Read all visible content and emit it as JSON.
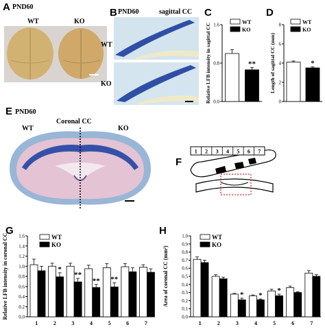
{
  "panels": {
    "A": {
      "label": "A",
      "tag": "PND60",
      "wt": "WT",
      "ko": "KO"
    },
    "B": {
      "label": "B",
      "tag": "PND60",
      "title": "sagittal CC",
      "wt": "WT",
      "ko": "KO"
    },
    "C": {
      "label": "C"
    },
    "D": {
      "label": "D"
    },
    "E": {
      "label": "E",
      "tag": "PND60",
      "wt": "WT",
      "ko": "KO",
      "title": "Coronal CC"
    },
    "F": {
      "label": "F",
      "segments": [
        "1",
        "2",
        "3",
        "4",
        "5",
        "6",
        "7"
      ]
    },
    "G": {
      "label": "G"
    },
    "H": {
      "label": "H"
    }
  },
  "colors": {
    "wt": "#ffffff",
    "ko": "#000000",
    "stain_blue": "#3a55a8",
    "tissue_pink": "#e8c7d6",
    "brain": "#d8b77a"
  },
  "chart_data": [
    {
      "id": "C",
      "type": "bar",
      "categories": [
        "WT",
        "KO"
      ],
      "values": [
        1.0,
        0.66
      ],
      "errors": [
        0.08,
        0.05
      ],
      "ylabel": "Relative LFB intensity in sagittal CC",
      "ylim": [
        0,
        1.6
      ],
      "yticks": [
        "0.0",
        "0.8",
        "1.6"
      ],
      "legend": [
        "WT",
        "KO"
      ],
      "annotations": [
        "",
        "**"
      ]
    },
    {
      "id": "D",
      "type": "bar",
      "categories": [
        "WT",
        "KO"
      ],
      "values": [
        4.1,
        3.5
      ],
      "errors": [
        0.12,
        0.1
      ],
      "ylabel": "Length of sagittal CC (mm)",
      "ylim": [
        0,
        8
      ],
      "yticks": [
        "0",
        "2",
        "4",
        "6",
        "8"
      ],
      "legend": [
        "WT",
        "KO"
      ],
      "annotations": [
        "",
        "*"
      ]
    },
    {
      "id": "G",
      "type": "bar",
      "categories": [
        "1",
        "2",
        "3",
        "4",
        "5",
        "6",
        "7"
      ],
      "series": [
        {
          "name": "WT",
          "values": [
            1.03,
            1.0,
            1.0,
            0.95,
            0.97,
            0.99,
            0.98
          ],
          "errors": [
            0.11,
            0.06,
            0.06,
            0.07,
            0.08,
            0.06,
            0.05
          ]
        },
        {
          "name": "KO",
          "values": [
            0.91,
            0.79,
            0.69,
            0.58,
            0.59,
            0.89,
            0.88
          ],
          "errors": [
            0.09,
            0.08,
            0.07,
            0.06,
            0.08,
            0.08,
            0.07
          ]
        }
      ],
      "ylabel": "Relative LFB intensity in coronal CC",
      "ylim": [
        0,
        1.6
      ],
      "yticks": [
        "0.0",
        "0.2",
        "0.4",
        "0.6",
        "0.8",
        "1.0",
        "1.2",
        "1.4",
        "1.6"
      ],
      "legend": [
        "WT",
        "KO"
      ],
      "annotations": [
        "",
        "*",
        "**",
        "**",
        "**",
        "",
        ""
      ]
    },
    {
      "id": "H",
      "type": "bar",
      "categories": [
        "1",
        "2",
        "3",
        "4",
        "5",
        "6",
        "7"
      ],
      "series": [
        {
          "name": "WT",
          "values": [
            0.71,
            0.5,
            0.28,
            0.26,
            0.32,
            0.36,
            0.54
          ],
          "errors": [
            0.03,
            0.02,
            0.01,
            0.01,
            0.02,
            0.02,
            0.03
          ]
        },
        {
          "name": "KO",
          "values": [
            0.67,
            0.47,
            0.21,
            0.21,
            0.26,
            0.3,
            0.5
          ],
          "errors": [
            0.03,
            0.02,
            0.02,
            0.01,
            0.02,
            0.01,
            0.02
          ]
        }
      ],
      "ylabel": "Area of coronal CC (mm²)",
      "ylim": [
        0,
        1.0
      ],
      "yticks": [
        "0.0",
        "0.1",
        "0.2",
        "0.3",
        "0.4",
        "0.5",
        "0.6",
        "0.7",
        "0.8",
        "0.9",
        "1.0"
      ],
      "legend": [
        "WT",
        "KO"
      ],
      "annotations": [
        "",
        "",
        "*",
        "*",
        "*",
        "",
        ""
      ]
    }
  ]
}
